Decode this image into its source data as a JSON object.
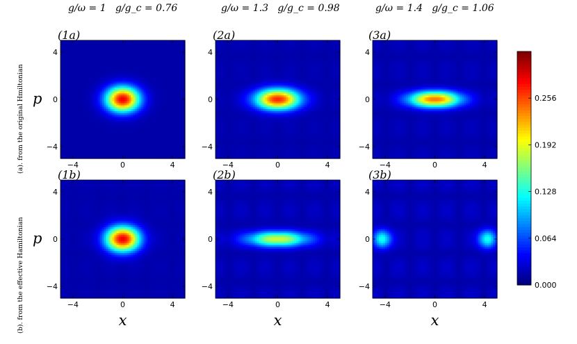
{
  "column_headers": [
    {
      "g_omega": "g/ω = 1",
      "g_gc": "g/g_c = 0.76"
    },
    {
      "g_omega": "g/ω = 1.3",
      "g_gc": "g/g_c = 0.98"
    },
    {
      "g_omega": "g/ω = 1.4",
      "g_gc": "g/g_c = 1.06"
    }
  ],
  "row_labels": [
    "(a). from the original Hmiltonian",
    "(b). from the effective Hamiltonian"
  ],
  "chart_data": {
    "type": "heatmap",
    "colormap": "jet",
    "colorbar": {
      "range": [
        0.0,
        0.32
      ],
      "ticks": [
        0.0,
        0.064,
        0.128,
        0.192,
        0.256
      ],
      "tick_labels": [
        "0.000",
        "0.064",
        "0.128",
        "0.192",
        "0.256"
      ]
    },
    "x_axis": {
      "label": "x",
      "range": [
        -5,
        5
      ],
      "ticks": [
        -4,
        0,
        4
      ],
      "tick_labels": [
        "−4",
        "0",
        "4"
      ]
    },
    "y_axis": {
      "label": "p",
      "range": [
        -5,
        5
      ],
      "ticks": [
        -4,
        0,
        4
      ],
      "tick_labels": [
        "−4",
        "0",
        "4"
      ]
    },
    "panels": [
      {
        "id": "(1a)",
        "row": 0,
        "col": 0,
        "blobs": [
          {
            "x0": 0,
            "p0": 0,
            "sx": 0.95,
            "sp": 0.75,
            "amp": 0.32
          }
        ],
        "fringe": 0.0
      },
      {
        "id": "(2a)",
        "row": 0,
        "col": 1,
        "blobs": [
          {
            "x0": 0,
            "p0": 0,
            "sx": 1.25,
            "sp": 0.62,
            "amp": 0.3
          }
        ],
        "fringe": 0.005
      },
      {
        "id": "(3a)",
        "row": 0,
        "col": 2,
        "blobs": [
          {
            "x0": 0,
            "p0": 0,
            "sx": 1.45,
            "sp": 0.48,
            "amp": 0.27
          }
        ],
        "fringe": 0.008
      },
      {
        "id": "(1b)",
        "row": 1,
        "col": 0,
        "blobs": [
          {
            "x0": 0,
            "p0": 0,
            "sx": 0.95,
            "sp": 0.75,
            "amp": 0.32
          }
        ],
        "fringe": 0.004
      },
      {
        "id": "(2b)",
        "row": 1,
        "col": 1,
        "blobs": [
          {
            "x0": 0,
            "p0": 0,
            "sx": 1.7,
            "sp": 0.45,
            "amp": 0.2
          }
        ],
        "fringe": 0.01
      },
      {
        "id": "(3b)",
        "row": 1,
        "col": 2,
        "blobs": [
          {
            "x0": -4.2,
            "p0": 0,
            "sx": 0.5,
            "sp": 0.55,
            "amp": 0.13
          },
          {
            "x0": 4.2,
            "p0": 0,
            "sx": 0.5,
            "sp": 0.55,
            "amp": 0.13
          }
        ],
        "fringe": 0.012
      }
    ]
  }
}
